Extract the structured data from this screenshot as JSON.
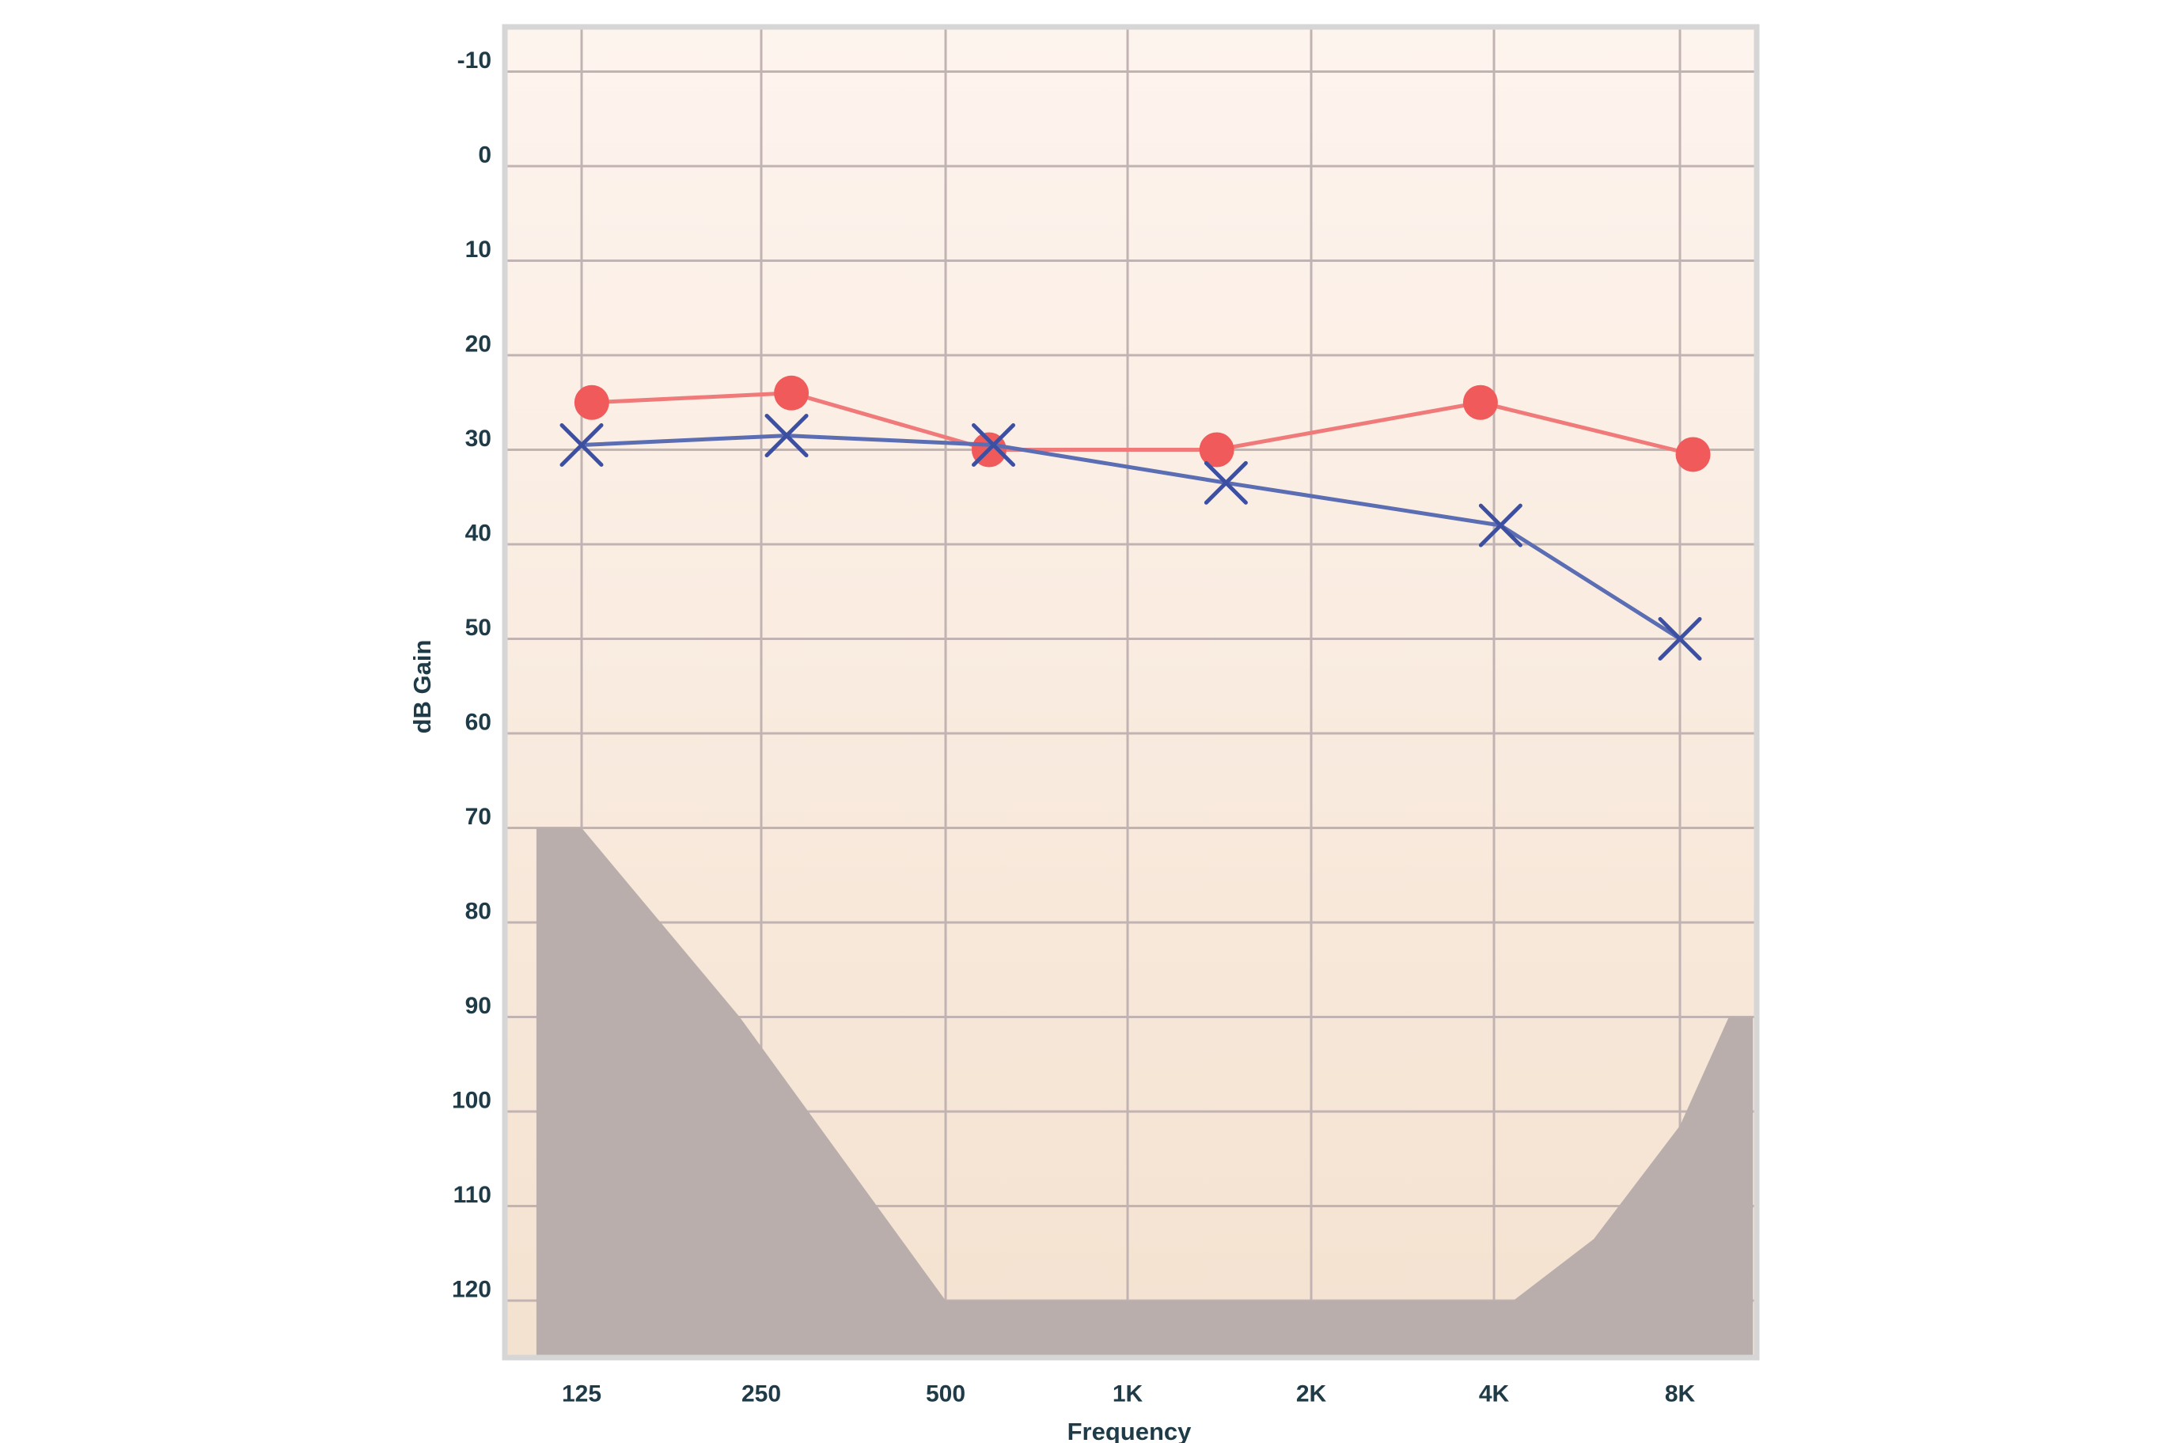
{
  "chart_data": {
    "type": "line",
    "xlabel": "Frequency",
    "ylabel": "dB Gain",
    "x_ticks": [
      "125",
      "250",
      "500",
      "1K",
      "2K",
      "4K",
      "8K"
    ],
    "y_ticks": [
      "-10",
      "0",
      "10",
      "20",
      "30",
      "40",
      "50",
      "60",
      "70",
      "80",
      "90",
      "100",
      "110",
      "120"
    ],
    "ylim": [
      -15,
      125
    ],
    "y_inverted": true,
    "grid": true,
    "series": [
      {
        "marker": "circle",
        "color": "#f05a5a",
        "line_color": "#f07a7a",
        "points": [
          {
            "x": 130,
            "y": 25
          },
          {
            "x": 280,
            "y": 24
          },
          {
            "x": 590,
            "y": 30
          },
          {
            "x": 1400,
            "y": 30
          },
          {
            "x": 3800,
            "y": 25
          },
          {
            "x": 8400,
            "y": 30.5
          }
        ]
      },
      {
        "marker": "cross",
        "color": "#3d4fa0",
        "line_color": "#5b6db3",
        "points": [
          {
            "x": 125,
            "y": 29.5
          },
          {
            "x": 275,
            "y": 28.5
          },
          {
            "x": 600,
            "y": 29.5
          },
          {
            "x": 1450,
            "y": 33.5
          },
          {
            "x": 4100,
            "y": 38
          },
          {
            "x": 8000,
            "y": 50
          }
        ]
      }
    ],
    "shaded_region": {
      "color": "#b9aeab",
      "points": [
        {
          "x": 105,
          "y": 70
        },
        {
          "x": 125,
          "y": 70
        },
        {
          "x": 230,
          "y": 90
        },
        {
          "x": 500,
          "y": 120
        },
        {
          "x": 4300,
          "y": 120
        },
        {
          "x": 5800,
          "y": 113.5
        },
        {
          "x": 8000,
          "y": 101.5
        },
        {
          "x": 9600,
          "y": 90
        },
        {
          "x": 10500,
          "y": 90
        }
      ]
    },
    "background_gradient": [
      "#fef4ee",
      "#f4e2d0"
    ],
    "grid_color": "#c2b3b3",
    "frame_color": "#d6d6d6"
  }
}
